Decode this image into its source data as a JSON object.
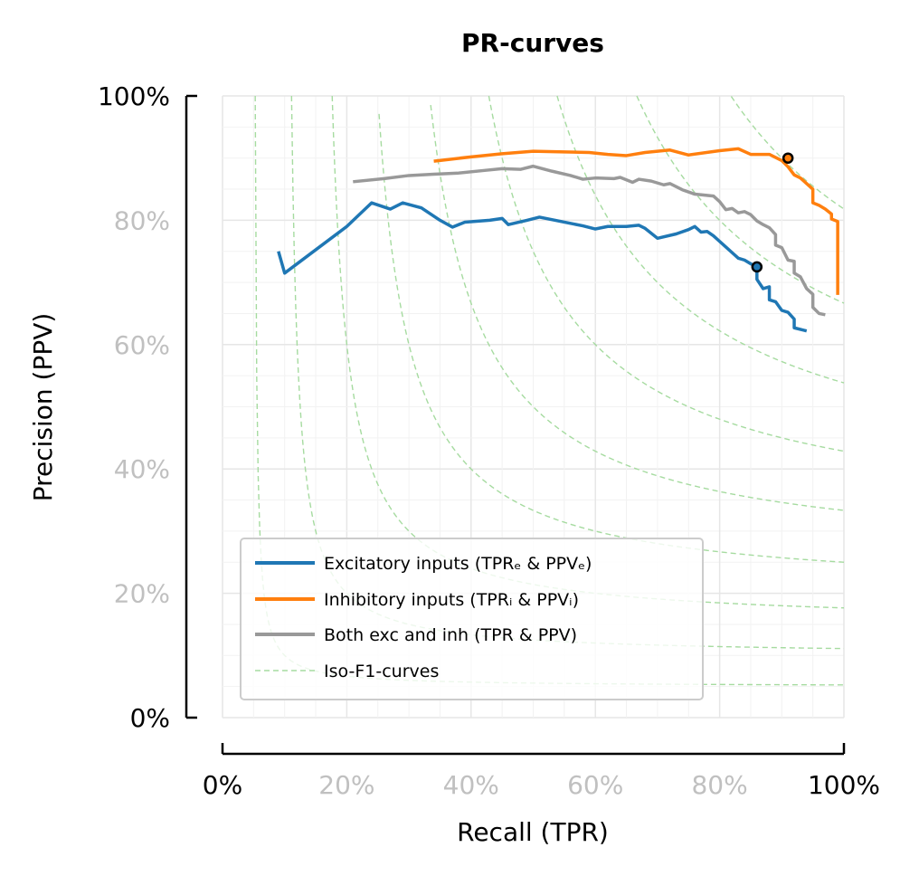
{
  "chart_data": {
    "type": "line",
    "title": "PR-curves",
    "xlabel": "Recall (TPR)",
    "ylabel": "Precision (PPV)",
    "xlim": [
      0,
      1
    ],
    "ylim": [
      0,
      1
    ],
    "grid": true,
    "legend_position": "lower-left",
    "x_ticks": [
      {
        "value": 0.0,
        "label": "0%",
        "emphasized": true
      },
      {
        "value": 0.2,
        "label": "20%",
        "emphasized": false
      },
      {
        "value": 0.4,
        "label": "40%",
        "emphasized": false
      },
      {
        "value": 0.6,
        "label": "60%",
        "emphasized": false
      },
      {
        "value": 0.8,
        "label": "80%",
        "emphasized": false
      },
      {
        "value": 1.0,
        "label": "100%",
        "emphasized": true
      }
    ],
    "y_ticks": [
      {
        "value": 0.0,
        "label": "0%",
        "emphasized": true
      },
      {
        "value": 0.2,
        "label": "20%",
        "emphasized": false
      },
      {
        "value": 0.4,
        "label": "40%",
        "emphasized": false
      },
      {
        "value": 0.6,
        "label": "60%",
        "emphasized": false
      },
      {
        "value": 0.8,
        "label": "80%",
        "emphasized": false
      },
      {
        "value": 1.0,
        "label": "100%",
        "emphasized": true
      }
    ],
    "series": [
      {
        "name": "Excitatory inputs (TPRₑ & PPVₑ)",
        "color": "#1f77b4",
        "points": [
          [
            0.09,
            0.75
          ],
          [
            0.1,
            0.715
          ],
          [
            0.14,
            0.745
          ],
          [
            0.18,
            0.775
          ],
          [
            0.2,
            0.79
          ],
          [
            0.24,
            0.828
          ],
          [
            0.27,
            0.818
          ],
          [
            0.29,
            0.828
          ],
          [
            0.32,
            0.82
          ],
          [
            0.35,
            0.8
          ],
          [
            0.37,
            0.789
          ],
          [
            0.39,
            0.797
          ],
          [
            0.43,
            0.8
          ],
          [
            0.45,
            0.803
          ],
          [
            0.46,
            0.793
          ],
          [
            0.49,
            0.8
          ],
          [
            0.51,
            0.805
          ],
          [
            0.54,
            0.799
          ],
          [
            0.58,
            0.791
          ],
          [
            0.6,
            0.786
          ],
          [
            0.62,
            0.79
          ],
          [
            0.65,
            0.79
          ],
          [
            0.67,
            0.792
          ],
          [
            0.68,
            0.787
          ],
          [
            0.7,
            0.771
          ],
          [
            0.73,
            0.778
          ],
          [
            0.75,
            0.785
          ],
          [
            0.76,
            0.79
          ],
          [
            0.77,
            0.781
          ],
          [
            0.78,
            0.782
          ],
          [
            0.79,
            0.775
          ],
          [
            0.8,
            0.766
          ],
          [
            0.81,
            0.757
          ],
          [
            0.82,
            0.748
          ],
          [
            0.83,
            0.739
          ],
          [
            0.84,
            0.736
          ],
          [
            0.85,
            0.73
          ],
          [
            0.86,
            0.725
          ],
          [
            0.86,
            0.705
          ],
          [
            0.87,
            0.69
          ],
          [
            0.88,
            0.693
          ],
          [
            0.88,
            0.672
          ],
          [
            0.89,
            0.669
          ],
          [
            0.9,
            0.655
          ],
          [
            0.91,
            0.652
          ],
          [
            0.92,
            0.641
          ],
          [
            0.92,
            0.627
          ],
          [
            0.94,
            0.622
          ]
        ],
        "marker": [
          0.86,
          0.725
        ]
      },
      {
        "name": "Inhibitory inputs (TPRᵢ & PPVᵢ)",
        "color": "#ff7f0e",
        "points": [
          [
            0.34,
            0.895
          ],
          [
            0.4,
            0.902
          ],
          [
            0.45,
            0.907
          ],
          [
            0.5,
            0.911
          ],
          [
            0.55,
            0.91
          ],
          [
            0.59,
            0.909
          ],
          [
            0.62,
            0.906
          ],
          [
            0.65,
            0.904
          ],
          [
            0.68,
            0.909
          ],
          [
            0.72,
            0.913
          ],
          [
            0.75,
            0.905
          ],
          [
            0.8,
            0.912
          ],
          [
            0.83,
            0.915
          ],
          [
            0.85,
            0.906
          ],
          [
            0.88,
            0.906
          ],
          [
            0.9,
            0.896
          ],
          [
            0.91,
            0.886
          ],
          [
            0.92,
            0.873
          ],
          [
            0.93,
            0.868
          ],
          [
            0.95,
            0.85
          ],
          [
            0.95,
            0.828
          ],
          [
            0.96,
            0.824
          ],
          [
            0.97,
            0.818
          ],
          [
            0.98,
            0.81
          ],
          [
            0.98,
            0.802
          ],
          [
            0.99,
            0.798
          ],
          [
            0.99,
            0.68
          ]
        ],
        "marker": [
          0.91,
          0.9
        ]
      },
      {
        "name": "Both exc and inh (TPR & PPV)",
        "color": "#999999",
        "points": [
          [
            0.21,
            0.862
          ],
          [
            0.26,
            0.867
          ],
          [
            0.3,
            0.872
          ],
          [
            0.34,
            0.874
          ],
          [
            0.38,
            0.876
          ],
          [
            0.42,
            0.88
          ],
          [
            0.45,
            0.883
          ],
          [
            0.48,
            0.882
          ],
          [
            0.5,
            0.887
          ],
          [
            0.53,
            0.879
          ],
          [
            0.56,
            0.872
          ],
          [
            0.58,
            0.866
          ],
          [
            0.6,
            0.868
          ],
          [
            0.63,
            0.867
          ],
          [
            0.64,
            0.869
          ],
          [
            0.66,
            0.861
          ],
          [
            0.67,
            0.866
          ],
          [
            0.69,
            0.863
          ],
          [
            0.71,
            0.857
          ],
          [
            0.72,
            0.859
          ],
          [
            0.74,
            0.849
          ],
          [
            0.76,
            0.842
          ],
          [
            0.79,
            0.839
          ],
          [
            0.8,
            0.83
          ],
          [
            0.81,
            0.817
          ],
          [
            0.82,
            0.819
          ],
          [
            0.83,
            0.812
          ],
          [
            0.84,
            0.814
          ],
          [
            0.85,
            0.809
          ],
          [
            0.86,
            0.799
          ],
          [
            0.87,
            0.793
          ],
          [
            0.88,
            0.788
          ],
          [
            0.89,
            0.777
          ],
          [
            0.89,
            0.76
          ],
          [
            0.9,
            0.756
          ],
          [
            0.91,
            0.736
          ],
          [
            0.92,
            0.734
          ],
          [
            0.92,
            0.715
          ],
          [
            0.93,
            0.709
          ],
          [
            0.94,
            0.69
          ],
          [
            0.95,
            0.681
          ],
          [
            0.95,
            0.66
          ],
          [
            0.96,
            0.65
          ],
          [
            0.97,
            0.648
          ]
        ]
      }
    ],
    "iso_f1_curves": {
      "name": "Iso-F₁-curves",
      "color": "#a6dba0",
      "f_values": [
        0.1,
        0.2,
        0.3,
        0.4,
        0.5,
        0.6,
        0.7,
        0.8,
        0.9
      ]
    },
    "legend": [
      {
        "label": "Excitatory inputs (TPRₑ & PPVₑ)",
        "color": "#1f77b4",
        "style": "solid"
      },
      {
        "label": "Inhibitory inputs (TPRᵢ & PPVᵢ)",
        "color": "#ff7f0e",
        "style": "solid"
      },
      {
        "label": "Both exc and inh (TPR & PPV)",
        "color": "#999999",
        "style": "solid"
      },
      {
        "label": "Iso-F1-curves",
        "color": "#a6dba0",
        "style": "dashed"
      }
    ]
  }
}
